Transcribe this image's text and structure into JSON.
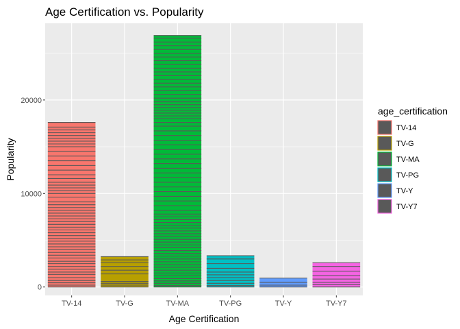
{
  "chart_data": {
    "type": "bar",
    "title": "Age Certification vs. Popularity",
    "xlabel": "Age Certification",
    "ylabel": "Popularity",
    "categories": [
      "TV-14",
      "TV-G",
      "TV-MA",
      "TV-PG",
      "TV-Y",
      "TV-Y7"
    ],
    "values": [
      17600,
      3250,
      26900,
      3350,
      950,
      2600
    ],
    "ylim": [
      -900,
      28200
    ],
    "yticks": [
      0,
      10000,
      20000
    ],
    "ytick_labels": [
      "0",
      "10000",
      "20000"
    ],
    "grid": true,
    "legend": {
      "title": "age_certification",
      "placement": "right",
      "entries": [
        "TV-14",
        "TV-G",
        "TV-MA",
        "TV-PG",
        "TV-Y",
        "TV-Y7"
      ]
    },
    "colors": {
      "TV-14": "#F8766D",
      "TV-G": "#B79F00",
      "TV-MA": "#00BA38",
      "TV-PG": "#00BFC4",
      "TV-Y": "#619CFF",
      "TV-Y7": "#F564E3"
    },
    "segment_outline_color": "#595959",
    "panel_background": "#EBEBEB",
    "segment_boundaries": {
      "TV-14": [
        200,
        450,
        700,
        1000,
        1350,
        1600,
        1900,
        2200,
        2500,
        2750,
        3100,
        3400,
        3700,
        4000,
        4300,
        4600,
        4900,
        5200,
        5500,
        5800,
        6100,
        6400,
        6700,
        7000,
        7300,
        7600,
        7900,
        8200,
        8500,
        8800,
        9100,
        9600,
        10000,
        10300,
        10600,
        10900,
        11200,
        11600,
        12000,
        12500,
        13000,
        13500,
        14000,
        14500,
        15000,
        15300,
        15600,
        15900,
        16200,
        16500,
        16800,
        17100
      ],
      "TV-G": [
        200,
        400,
        600,
        1400,
        1800,
        2200,
        2600,
        2900
      ],
      "TV-MA": [
        150,
        400,
        650,
        900,
        1200,
        1500,
        1800,
        2100,
        2400,
        2700,
        3000,
        3300,
        3600,
        3900,
        4200,
        4500,
        4800,
        5100,
        5400,
        5700,
        6000,
        6300,
        6600,
        6900,
        7200,
        7500,
        7800,
        8200,
        8700,
        9200,
        9700,
        10200,
        10700,
        11200,
        11700,
        12200,
        12700,
        13200,
        13700,
        14200,
        14700,
        15200,
        15700,
        16200,
        16700,
        17200,
        17600,
        18000,
        18300,
        18600,
        18900,
        19200,
        19500,
        19800,
        20200,
        20600,
        21000,
        21400,
        21800,
        22200,
        22600,
        23000,
        23400,
        23800,
        24200,
        24600,
        25000,
        25400,
        25800,
        26200,
        26600
      ],
      "TV-PG": [
        150,
        400,
        700,
        1000,
        1300,
        1600,
        2000,
        2500,
        3000
      ],
      "TV-Y": [
        200,
        500
      ],
      "TV-Y7": [
        250,
        500,
        850,
        1200,
        1700,
        2200
      ]
    }
  }
}
